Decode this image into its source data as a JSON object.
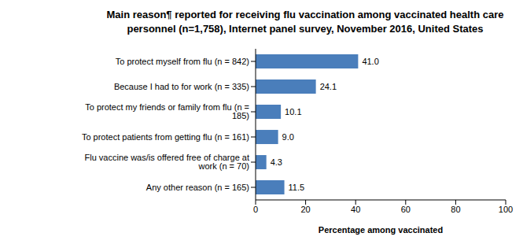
{
  "chart_data": {
    "type": "bar",
    "orientation": "horizontal",
    "title": "Main reason¶ reported for receiving flu vaccination among vaccinated health care personnel (n=1,758), Internet panel survey, November 2016, United States",
    "x_label": "Percentage among vaccinated",
    "categories": [
      "To protect myself from flu (n = 842)",
      "Because I had to for work (n = 335)",
      "To protect my friends or family from flu (n = 185)",
      "To protect patients from getting flu (n = 161)",
      "Flu vaccine was/is offered free of charge at work (n = 70)",
      "Any other reason (n = 165)"
    ],
    "values": [
      41.0,
      24.1,
      10.1,
      9.0,
      4.3,
      11.5
    ],
    "value_labels": [
      "41.0",
      "24.1",
      "10.1",
      "9.0",
      "4.3",
      "11.5"
    ],
    "data_labels": true,
    "color": "#4a7ebb",
    "xlim": [
      0,
      100
    ],
    "xticks": [
      0,
      20,
      40,
      60,
      80,
      100
    ],
    "grid": false
  }
}
